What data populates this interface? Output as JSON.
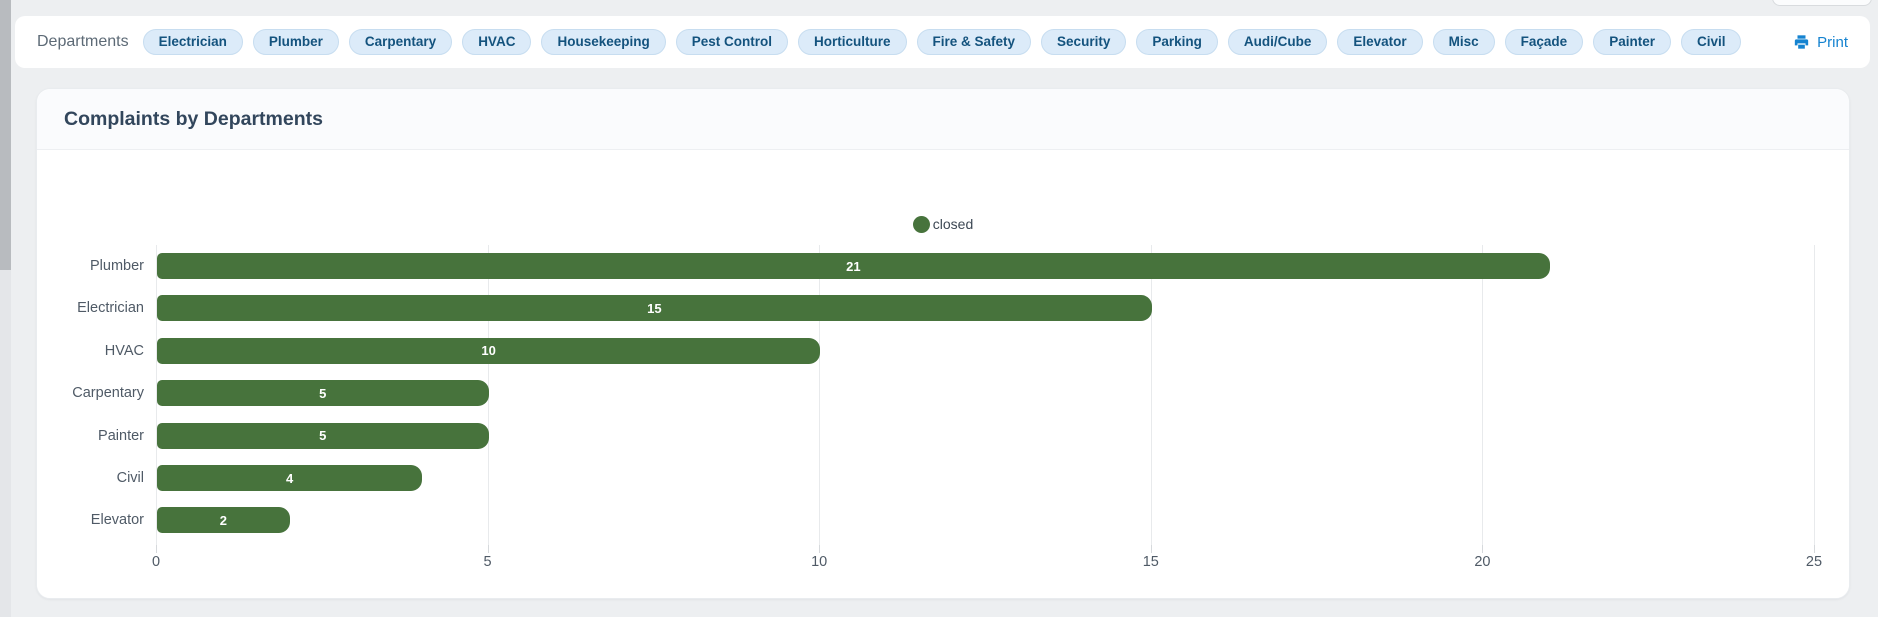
{
  "toolbar": {
    "label": "Departments",
    "departments": [
      "Electrician",
      "Plumber",
      "Carpentary",
      "HVAC",
      "Housekeeping",
      "Pest Control",
      "Horticulture",
      "Fire & Safety",
      "Security",
      "Parking",
      "Audi/Cube",
      "Elevator",
      "Misc",
      "Façade",
      "Painter",
      "Civil"
    ],
    "print_label": "Print"
  },
  "card": {
    "title": "Complaints by Departments"
  },
  "chart_data": {
    "type": "bar",
    "orientation": "horizontal",
    "title": "Complaints by Departments",
    "categories": [
      "Plumber",
      "Electrician",
      "HVAC",
      "Carpentary",
      "Painter",
      "Civil",
      "Elevator"
    ],
    "series": [
      {
        "name": "closed",
        "values": [
          21,
          15,
          10,
          5,
          5,
          4,
          2
        ]
      }
    ],
    "value_labels": [
      "21",
      "15",
      "10",
      "5",
      "5",
      "4",
      "2"
    ],
    "xlim": [
      0,
      25
    ],
    "xticks": [
      0,
      5,
      10,
      15,
      20,
      25
    ],
    "grid": true,
    "legend_position": "top-center",
    "legend": [
      {
        "label": "closed",
        "color": "#47733c"
      }
    ]
  },
  "colors": {
    "bar_green": "#47733c",
    "pill_blue_bg": "#dcebf9",
    "pill_blue_text": "#14537e",
    "print_blue": "#1583d0",
    "page_bg": "#edeff1"
  }
}
